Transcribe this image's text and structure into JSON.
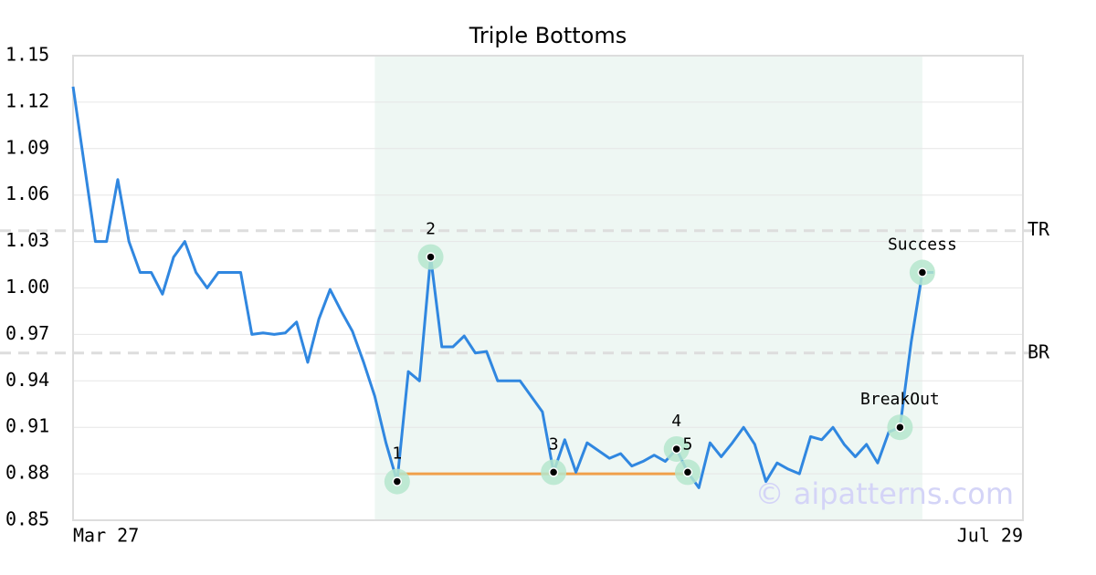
{
  "chart_data": {
    "type": "line",
    "title": "Triple Bottoms",
    "x": [
      0,
      1,
      2,
      3,
      4,
      5,
      6,
      7,
      8,
      9,
      10,
      11,
      12,
      13,
      14,
      15,
      16,
      17,
      18,
      19,
      20,
      21,
      22,
      23,
      24,
      25,
      26,
      27,
      28,
      29,
      30,
      31,
      32,
      33,
      34,
      35,
      36,
      37,
      38,
      39,
      40,
      41,
      42,
      43,
      44,
      45,
      46,
      47,
      48,
      49,
      50,
      51,
      52,
      53,
      54,
      55,
      56,
      57,
      58,
      59,
      60,
      61,
      62,
      63,
      64,
      65,
      66,
      67,
      68,
      69,
      70,
      71,
      72,
      73,
      74,
      75,
      76,
      77
    ],
    "values": [
      1.13,
      1.08,
      1.03,
      1.03,
      1.07,
      1.03,
      1.01,
      1.01,
      0.996,
      1.02,
      1.03,
      1.01,
      1.0,
      1.01,
      1.01,
      1.01,
      0.97,
      0.971,
      0.97,
      0.971,
      0.978,
      0.952,
      0.98,
      0.999,
      0.985,
      0.972,
      0.952,
      0.93,
      0.9,
      0.875,
      0.946,
      0.94,
      1.02,
      0.962,
      0.962,
      0.969,
      0.958,
      0.959,
      0.94,
      0.94,
      0.94,
      0.93,
      0.92,
      0.881,
      0.902,
      0.881,
      0.9,
      0.895,
      0.89,
      0.893,
      0.885,
      0.888,
      0.892,
      0.888,
      0.896,
      0.881,
      0.871,
      0.9,
      0.891,
      0.9,
      0.91,
      0.899,
      0.875,
      0.887,
      0.883,
      0.88,
      0.904,
      0.902,
      0.91,
      0.899,
      0.891,
      0.899,
      0.887,
      0.907,
      0.91,
      0.965,
      1.01,
      1.01
    ],
    "color": "#3087e0",
    "xlim": [
      0,
      85
    ],
    "xticks": [
      {
        "value": 0,
        "label": "Mar 27"
      },
      {
        "value": 85,
        "label": "Jul 29"
      }
    ],
    "ylim": [
      0.85,
      1.15
    ],
    "yticks": [
      0.85,
      0.88,
      0.91,
      0.94,
      0.97,
      {
        "value": 1.0,
        "label": "1.00"
      },
      1.03,
      1.06,
      1.09,
      1.12,
      1.15
    ],
    "grid": true,
    "highlight_x": [
      27,
      76
    ],
    "support": {
      "x": [
        29,
        55
      ],
      "value": 0.88,
      "color": "#f0a04b"
    },
    "levels": [
      {
        "label": "TR",
        "value": 1.037
      },
      {
        "label": "BR",
        "value": 0.958
      }
    ],
    "points": [
      {
        "label": "1",
        "x": 29,
        "y": 0.875
      },
      {
        "label": "2",
        "x": 32,
        "y": 1.02
      },
      {
        "label": "3",
        "x": 43,
        "y": 0.881
      },
      {
        "label": "4",
        "x": 54,
        "y": 0.896
      },
      {
        "label": "5",
        "x": 55,
        "y": 0.881
      },
      {
        "label": "BreakOut",
        "x": 74,
        "y": 0.91
      },
      {
        "label": "Success",
        "x": 76,
        "y": 1.01
      }
    ],
    "watermark": "© aipatterns.com"
  }
}
